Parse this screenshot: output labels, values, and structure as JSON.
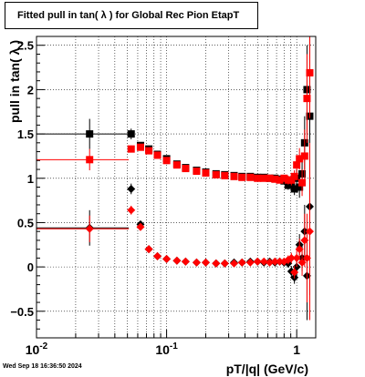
{
  "chart_data": {
    "type": "scatter",
    "title": "Fitted pull in tan( λ ) for Global Rec Pion EtapT",
    "xlabel": "pT/|q| (GeV/c)",
    "ylabel": "pull in tan( λ )",
    "x_scale": "log",
    "xlim": [
      0.01,
      1.4
    ],
    "ylim": [
      -0.8,
      2.6
    ],
    "grid": true,
    "x_ticks": [
      {
        "value": 0.01,
        "label": "10",
        "exp": "-2"
      },
      {
        "value": 0.1,
        "label": "10",
        "exp": "-1"
      },
      {
        "value": 1,
        "label": "1",
        "exp": ""
      }
    ],
    "y_ticks": [
      {
        "value": -0.5,
        "label": "−0.5"
      },
      {
        "value": 0,
        "label": "0"
      },
      {
        "value": 0.5,
        "label": "0.5"
      },
      {
        "value": 1,
        "label": "1"
      },
      {
        "value": 1.5,
        "label": "1.5"
      },
      {
        "value": 2,
        "label": "2"
      },
      {
        "value": 2.5,
        "label": "2.5"
      }
    ],
    "timestamp": "Wed Sep 18 16:36:50 2024",
    "series": [
      {
        "color": "#000000",
        "marker": "square",
        "points": [
          {
            "x": 0.0256,
            "y": 1.5,
            "xerr": [
              0.0156,
              0.0256
            ],
            "yerr": 0.17
          },
          {
            "x": 0.0534,
            "y": 1.5,
            "yerr": 0.06
          },
          {
            "x": 0.063,
            "y": 1.37,
            "yerr": 0.03
          },
          {
            "x": 0.073,
            "y": 1.33,
            "yerr": 0.02
          },
          {
            "x": 0.085,
            "y": 1.27
          },
          {
            "x": 0.1,
            "y": 1.22
          },
          {
            "x": 0.12,
            "y": 1.16
          },
          {
            "x": 0.14,
            "y": 1.12
          },
          {
            "x": 0.17,
            "y": 1.09
          },
          {
            "x": 0.2,
            "y": 1.07
          },
          {
            "x": 0.24,
            "y": 1.05
          },
          {
            "x": 0.28,
            "y": 1.04
          },
          {
            "x": 0.33,
            "y": 1.03
          },
          {
            "x": 0.38,
            "y": 1.02
          },
          {
            "x": 0.44,
            "y": 1.02
          },
          {
            "x": 0.5,
            "y": 1.01
          },
          {
            "x": 0.56,
            "y": 1.01
          },
          {
            "x": 0.62,
            "y": 1.0
          },
          {
            "x": 0.68,
            "y": 1.0
          },
          {
            "x": 0.74,
            "y": 0.99
          },
          {
            "x": 0.8,
            "y": 0.97
          },
          {
            "x": 0.86,
            "y": 0.92,
            "yerr": 0.05
          },
          {
            "x": 0.91,
            "y": 0.95,
            "yerr": 0.06
          },
          {
            "x": 0.96,
            "y": 0.88,
            "yerr": 0.07
          },
          {
            "x": 1.0,
            "y": 1.0,
            "yerr": 0.1
          },
          {
            "x": 1.05,
            "y": 0.9,
            "yerr": 0.12
          },
          {
            "x": 1.1,
            "y": 1.05,
            "yerr": 0.15
          },
          {
            "x": 1.15,
            "y": 1.4,
            "yerr": 0.3
          },
          {
            "x": 1.2,
            "y": 2.0,
            "yerr": 0.5
          },
          {
            "x": 1.26,
            "y": 1.7,
            "yerr": 1.0
          }
        ]
      },
      {
        "color": "#ff0000",
        "marker": "square",
        "points": [
          {
            "x": 0.0256,
            "y": 1.21,
            "xerr": [
              0.0156,
              0.0256
            ],
            "yerr": 0.12
          },
          {
            "x": 0.0534,
            "y": 1.33,
            "yerr": 0.04
          },
          {
            "x": 0.063,
            "y": 1.35,
            "yerr": 0.03
          },
          {
            "x": 0.073,
            "y": 1.31,
            "yerr": 0.02
          },
          {
            "x": 0.085,
            "y": 1.26
          },
          {
            "x": 0.1,
            "y": 1.2
          },
          {
            "x": 0.12,
            "y": 1.15
          },
          {
            "x": 0.14,
            "y": 1.11
          },
          {
            "x": 0.17,
            "y": 1.08
          },
          {
            "x": 0.2,
            "y": 1.06
          },
          {
            "x": 0.24,
            "y": 1.04
          },
          {
            "x": 0.28,
            "y": 1.03
          },
          {
            "x": 0.33,
            "y": 1.02
          },
          {
            "x": 0.38,
            "y": 1.01
          },
          {
            "x": 0.44,
            "y": 1.01
          },
          {
            "x": 0.5,
            "y": 1.0
          },
          {
            "x": 0.56,
            "y": 1.0
          },
          {
            "x": 0.62,
            "y": 1.0
          },
          {
            "x": 0.68,
            "y": 0.99
          },
          {
            "x": 0.74,
            "y": 0.98
          },
          {
            "x": 0.8,
            "y": 1.0
          },
          {
            "x": 0.86,
            "y": 0.98,
            "yerr": 0.05
          },
          {
            "x": 0.91,
            "y": 0.98,
            "yerr": 0.06
          },
          {
            "x": 0.96,
            "y": 1.02,
            "yerr": 0.07
          },
          {
            "x": 1.0,
            "y": 1.15,
            "yerr": 0.1
          },
          {
            "x": 1.05,
            "y": 1.22,
            "yerr": 0.12
          },
          {
            "x": 1.1,
            "y": 0.95,
            "yerr": 0.15
          },
          {
            "x": 1.15,
            "y": 1.25,
            "yerr": 0.3
          },
          {
            "x": 1.2,
            "y": 1.9,
            "yerr": 0.5
          },
          {
            "x": 1.26,
            "y": 2.19,
            "yerr": 1.0
          }
        ]
      },
      {
        "color": "#000000",
        "marker": "diamond",
        "points": [
          {
            "x": 0.0256,
            "y": 0.44,
            "xerr": [
              0.0156,
              0.0256
            ],
            "yerr": 0.2
          },
          {
            "x": 0.0534,
            "y": 0.88,
            "yerr": 0.06
          },
          {
            "x": 0.063,
            "y": 0.48,
            "yerr": 0.03
          },
          {
            "x": 0.073,
            "y": 0.2,
            "yerr": 0.02
          },
          {
            "x": 0.085,
            "y": 0.12
          },
          {
            "x": 0.1,
            "y": 0.09
          },
          {
            "x": 0.12,
            "y": 0.07
          },
          {
            "x": 0.14,
            "y": 0.06
          },
          {
            "x": 0.17,
            "y": 0.05
          },
          {
            "x": 0.2,
            "y": 0.05
          },
          {
            "x": 0.24,
            "y": 0.04
          },
          {
            "x": 0.28,
            "y": 0.04
          },
          {
            "x": 0.33,
            "y": 0.05
          },
          {
            "x": 0.38,
            "y": 0.05
          },
          {
            "x": 0.44,
            "y": 0.06
          },
          {
            "x": 0.5,
            "y": 0.06
          },
          {
            "x": 0.56,
            "y": 0.05
          },
          {
            "x": 0.62,
            "y": 0.06
          },
          {
            "x": 0.68,
            "y": 0.05
          },
          {
            "x": 0.74,
            "y": 0.06
          },
          {
            "x": 0.8,
            "y": 0.05
          },
          {
            "x": 0.86,
            "y": 0.04,
            "yerr": 0.05
          },
          {
            "x": 0.91,
            "y": -0.05,
            "yerr": 0.06
          },
          {
            "x": 0.96,
            "y": -0.12,
            "yerr": 0.07
          },
          {
            "x": 1.0,
            "y": 0.0,
            "yerr": 0.1
          },
          {
            "x": 1.05,
            "y": 0.25,
            "yerr": 0.12
          },
          {
            "x": 1.1,
            "y": 0.1,
            "yerr": 0.15
          },
          {
            "x": 1.15,
            "y": 0.4,
            "yerr": 0.3
          },
          {
            "x": 1.2,
            "y": -0.1,
            "yerr": 0.5
          },
          {
            "x": 1.26,
            "y": 0.68,
            "yerr": 1.0
          }
        ]
      },
      {
        "color": "#ff0000",
        "marker": "diamond",
        "points": [
          {
            "x": 0.0256,
            "y": 0.43,
            "xerr": [
              0.0156,
              0.0256
            ],
            "yerr": 0.15
          },
          {
            "x": 0.0534,
            "y": 0.64,
            "yerr": 0.05
          },
          {
            "x": 0.063,
            "y": 0.45,
            "yerr": 0.03
          },
          {
            "x": 0.073,
            "y": 0.2,
            "yerr": 0.02
          },
          {
            "x": 0.085,
            "y": 0.12
          },
          {
            "x": 0.1,
            "y": 0.09
          },
          {
            "x": 0.12,
            "y": 0.07
          },
          {
            "x": 0.14,
            "y": 0.06
          },
          {
            "x": 0.17,
            "y": 0.05
          },
          {
            "x": 0.2,
            "y": 0.05
          },
          {
            "x": 0.24,
            "y": 0.04
          },
          {
            "x": 0.28,
            "y": 0.04
          },
          {
            "x": 0.33,
            "y": 0.04
          },
          {
            "x": 0.38,
            "y": 0.05
          },
          {
            "x": 0.44,
            "y": 0.05
          },
          {
            "x": 0.5,
            "y": 0.06
          },
          {
            "x": 0.56,
            "y": 0.06
          },
          {
            "x": 0.62,
            "y": 0.05
          },
          {
            "x": 0.68,
            "y": 0.06
          },
          {
            "x": 0.74,
            "y": 0.06
          },
          {
            "x": 0.8,
            "y": 0.06
          },
          {
            "x": 0.86,
            "y": 0.08,
            "yerr": 0.05
          },
          {
            "x": 0.91,
            "y": 0.1,
            "yerr": 0.06
          },
          {
            "x": 0.96,
            "y": -0.06,
            "yerr": 0.07
          },
          {
            "x": 1.0,
            "y": 0.1,
            "yerr": 0.1
          },
          {
            "x": 1.05,
            "y": 0.2,
            "yerr": 0.12
          },
          {
            "x": 1.1,
            "y": 0.05,
            "yerr": 0.15
          },
          {
            "x": 1.15,
            "y": 0.3,
            "yerr": 0.3
          },
          {
            "x": 1.2,
            "y": 0.1,
            "yerr": 0.5
          },
          {
            "x": 1.26,
            "y": 0.4,
            "yerr": 1.0
          }
        ]
      }
    ]
  }
}
